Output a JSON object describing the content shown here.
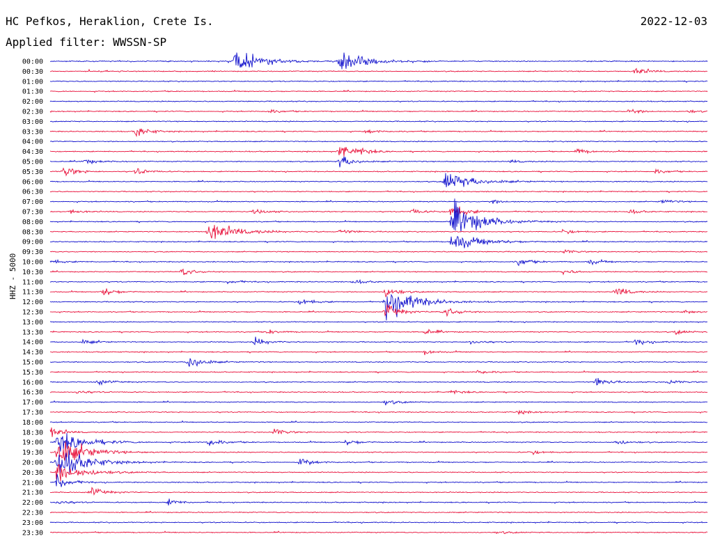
{
  "header": {
    "station": "HC Pefkos, Heraklion, Crete Is.",
    "date": "2022-12-03",
    "filter": "Applied filter: WWSSN-SP",
    "channel": "HHZ - 5000"
  },
  "colors": {
    "even_trace": "#1010cc",
    "odd_trace": "#e8103a",
    "background": "#ffffff",
    "text": "#000000"
  },
  "chart_data": {
    "type": "line",
    "title": "",
    "ylabel": "HHZ - 5000",
    "xlabel": "",
    "grid": false,
    "trace_minutes": 30,
    "rows": [
      {
        "label": "00:00",
        "events": [
          {
            "t": 0.28,
            "a": 16
          },
          {
            "t": 0.44,
            "a": 14
          }
        ]
      },
      {
        "label": "00:30",
        "events": [
          {
            "t": 0.89,
            "a": 6
          }
        ]
      },
      {
        "label": "01:00",
        "events": []
      },
      {
        "label": "01:30",
        "events": []
      },
      {
        "label": "02:00",
        "events": []
      },
      {
        "label": "02:30",
        "events": [
          {
            "t": 0.33,
            "a": 3
          },
          {
            "t": 0.88,
            "a": 4
          },
          {
            "t": 0.97,
            "a": 2
          }
        ]
      },
      {
        "label": "03:00",
        "events": []
      },
      {
        "label": "03:30",
        "events": [
          {
            "t": 0.13,
            "a": 8
          },
          {
            "t": 0.48,
            "a": 3
          }
        ]
      },
      {
        "label": "04:00",
        "events": []
      },
      {
        "label": "04:30",
        "events": [
          {
            "t": 0.44,
            "a": 12
          },
          {
            "t": 0.47,
            "a": 4
          },
          {
            "t": 0.8,
            "a": 4
          }
        ]
      },
      {
        "label": "05:00",
        "events": [
          {
            "t": 0.05,
            "a": 4
          },
          {
            "t": 0.44,
            "a": 10
          },
          {
            "t": 0.7,
            "a": 2
          }
        ]
      },
      {
        "label": "05:30",
        "events": [
          {
            "t": 0.02,
            "a": 8
          },
          {
            "t": 0.13,
            "a": 5
          },
          {
            "t": 0.92,
            "a": 3
          }
        ]
      },
      {
        "label": "06:00",
        "events": [
          {
            "t": 0.6,
            "a": 14
          }
        ]
      },
      {
        "label": "06:30",
        "events": []
      },
      {
        "label": "07:00",
        "events": [
          {
            "t": 0.67,
            "a": 3
          },
          {
            "t": 0.93,
            "a": 3
          }
        ]
      },
      {
        "label": "07:30",
        "events": [
          {
            "t": 0.03,
            "a": 3
          },
          {
            "t": 0.31,
            "a": 4
          },
          {
            "t": 0.55,
            "a": 4
          },
          {
            "t": 0.61,
            "a": 12
          },
          {
            "t": 0.88,
            "a": 3
          }
        ]
      },
      {
        "label": "08:00",
        "events": [
          {
            "t": 0.61,
            "a": 28
          }
        ]
      },
      {
        "label": "08:30",
        "events": [
          {
            "t": 0.24,
            "a": 14
          },
          {
            "t": 0.44,
            "a": 3
          },
          {
            "t": 0.78,
            "a": 3
          }
        ]
      },
      {
        "label": "09:00",
        "events": [
          {
            "t": 0.61,
            "a": 14
          }
        ]
      },
      {
        "label": "09:30",
        "events": [
          {
            "t": 0.78,
            "a": 3
          }
        ]
      },
      {
        "label": "10:00",
        "events": [
          {
            "t": 0.0,
            "a": 3
          },
          {
            "t": 0.71,
            "a": 6
          },
          {
            "t": 0.82,
            "a": 4
          }
        ]
      },
      {
        "label": "10:30",
        "events": [
          {
            "t": 0.2,
            "a": 6
          },
          {
            "t": 0.78,
            "a": 3
          }
        ]
      },
      {
        "label": "11:00",
        "events": [
          {
            "t": 0.27,
            "a": 3
          },
          {
            "t": 0.46,
            "a": 3
          }
        ]
      },
      {
        "label": "11:30",
        "events": [
          {
            "t": 0.08,
            "a": 6
          },
          {
            "t": 0.51,
            "a": 8
          },
          {
            "t": 0.86,
            "a": 8
          }
        ]
      },
      {
        "label": "12:00",
        "events": [
          {
            "t": 0.38,
            "a": 5
          },
          {
            "t": 0.51,
            "a": 24
          }
        ]
      },
      {
        "label": "12:30",
        "events": [
          {
            "t": 0.51,
            "a": 12
          },
          {
            "t": 0.6,
            "a": 8
          },
          {
            "t": 0.96,
            "a": 3
          }
        ]
      },
      {
        "label": "13:00",
        "events": []
      },
      {
        "label": "13:30",
        "events": [
          {
            "t": 0.33,
            "a": 3
          },
          {
            "t": 0.57,
            "a": 4
          },
          {
            "t": 0.95,
            "a": 3
          }
        ]
      },
      {
        "label": "14:00",
        "events": [
          {
            "t": 0.05,
            "a": 3
          },
          {
            "t": 0.31,
            "a": 6
          },
          {
            "t": 0.64,
            "a": 4
          },
          {
            "t": 0.89,
            "a": 5
          }
        ]
      },
      {
        "label": "14:30",
        "events": [
          {
            "t": 0.57,
            "a": 3
          }
        ]
      },
      {
        "label": "15:00",
        "events": [
          {
            "t": 0.21,
            "a": 12
          }
        ]
      },
      {
        "label": "15:30",
        "events": [
          {
            "t": 0.65,
            "a": 3
          }
        ]
      },
      {
        "label": "16:00",
        "events": [
          {
            "t": 0.07,
            "a": 5
          },
          {
            "t": 0.83,
            "a": 6
          },
          {
            "t": 0.94,
            "a": 3
          }
        ]
      },
      {
        "label": "16:30",
        "events": [
          {
            "t": 0.04,
            "a": 3
          },
          {
            "t": 0.61,
            "a": 3
          }
        ]
      },
      {
        "label": "17:00",
        "events": [
          {
            "t": 0.51,
            "a": 4
          }
        ]
      },
      {
        "label": "17:30",
        "events": [
          {
            "t": 0.71,
            "a": 3
          }
        ]
      },
      {
        "label": "18:00",
        "events": []
      },
      {
        "label": "18:30",
        "events": [
          {
            "t": 0.0,
            "a": 8
          },
          {
            "t": 0.34,
            "a": 5
          }
        ]
      },
      {
        "label": "19:00",
        "events": [
          {
            "t": 0.01,
            "a": 16
          },
          {
            "t": 0.24,
            "a": 6
          },
          {
            "t": 0.45,
            "a": 4
          },
          {
            "t": 0.86,
            "a": 4
          }
        ]
      },
      {
        "label": "19:30",
        "events": [
          {
            "t": 0.01,
            "a": 20
          },
          {
            "t": 0.73,
            "a": 3
          }
        ]
      },
      {
        "label": "20:00",
        "events": [
          {
            "t": 0.01,
            "a": 24
          },
          {
            "t": 0.38,
            "a": 6
          }
        ]
      },
      {
        "label": "20:30",
        "events": [
          {
            "t": 0.01,
            "a": 14
          }
        ]
      },
      {
        "label": "21:00",
        "events": [
          {
            "t": 0.01,
            "a": 12
          }
        ]
      },
      {
        "label": "21:30",
        "events": [
          {
            "t": 0.06,
            "a": 8
          }
        ]
      },
      {
        "label": "22:00",
        "events": [
          {
            "t": 0.01,
            "a": 4
          },
          {
            "t": 0.18,
            "a": 4
          }
        ]
      },
      {
        "label": "22:30",
        "events": []
      },
      {
        "label": "23:00",
        "events": []
      },
      {
        "label": "23:30",
        "events": [
          {
            "t": 0.68,
            "a": 2
          }
        ]
      }
    ]
  }
}
